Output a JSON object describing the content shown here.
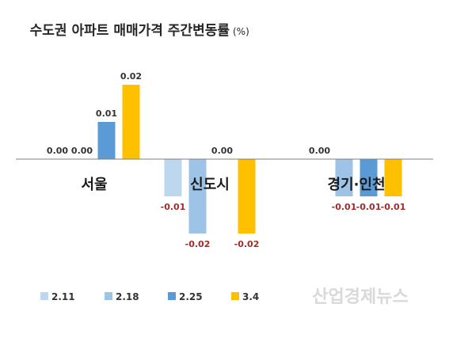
{
  "chart_data": {
    "type": "bar",
    "title": "수도권 아파트 매매가격 주간변동률",
    "unit": "(%)",
    "categories": [
      "서울",
      "신도시",
      "경기·인천"
    ],
    "series": [
      {
        "name": "2.11",
        "values": [
          0.0,
          -0.01,
          0.0
        ]
      },
      {
        "name": "2.18",
        "values": [
          0.0,
          -0.02,
          -0.01
        ]
      },
      {
        "name": "2.25",
        "values": [
          0.01,
          0.0,
          -0.01
        ]
      },
      {
        "name": "3.4",
        "values": [
          0.02,
          -0.02,
          -0.01
        ]
      }
    ],
    "value_labels": [
      [
        "0.00",
        "-0.01",
        "0.00"
      ],
      [
        "0.00",
        "-0.02",
        "-0.01"
      ],
      [
        "0.01",
        "0.00",
        "-0.01"
      ],
      [
        "0.02",
        "-0.02",
        "-0.01"
      ]
    ],
    "colors": [
      "#BDD7EE",
      "#9DC3E6",
      "#5B9BD5",
      "#FFC000"
    ],
    "neg_label_color": "#A52A2A",
    "ylim": [
      -0.02,
      0.02
    ],
    "grid": false,
    "legend_position": "bottom-left",
    "watermark": "산업경제뉴스"
  }
}
